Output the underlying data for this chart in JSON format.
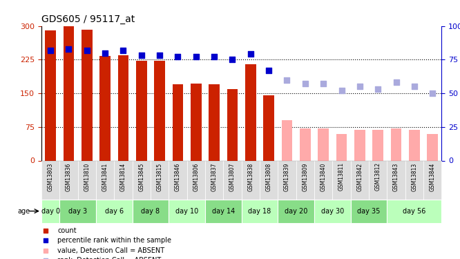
{
  "title": "GDS605 / 95117_at",
  "samples": [
    "GSM13803",
    "GSM13836",
    "GSM13810",
    "GSM13841",
    "GSM13814",
    "GSM13845",
    "GSM13815",
    "GSM13846",
    "GSM13806",
    "GSM13837",
    "GSM13807",
    "GSM13838",
    "GSM13808",
    "GSM13839",
    "GSM13809",
    "GSM13840",
    "GSM13811",
    "GSM13842",
    "GSM13812",
    "GSM13843",
    "GSM13813",
    "GSM13844"
  ],
  "count_values": [
    290,
    300,
    291,
    233,
    235,
    222,
    222,
    170,
    172,
    170,
    160,
    215,
    145,
    null,
    null,
    null,
    null,
    null,
    null,
    null,
    null,
    null
  ],
  "absent_values": [
    null,
    null,
    null,
    null,
    null,
    null,
    null,
    null,
    null,
    null,
    null,
    null,
    null,
    90,
    72,
    72,
    60,
    68,
    68,
    72,
    68,
    60
  ],
  "rank_present": [
    82,
    83,
    82,
    80,
    82,
    78,
    78,
    77,
    77,
    77,
    75,
    79,
    67,
    null,
    null,
    null,
    null,
    null,
    null,
    null,
    null,
    null
  ],
  "rank_absent": [
    null,
    null,
    null,
    null,
    null,
    null,
    null,
    null,
    null,
    null,
    null,
    null,
    null,
    60,
    57,
    57,
    52,
    55,
    53,
    58,
    55,
    50
  ],
  "day_groups": [
    {
      "label": "day 0",
      "start": 0,
      "end": 1,
      "green": false
    },
    {
      "label": "day 3",
      "start": 1,
      "end": 3,
      "green": true
    },
    {
      "label": "day 6",
      "start": 3,
      "end": 5,
      "green": false
    },
    {
      "label": "day 8",
      "start": 5,
      "end": 7,
      "green": true
    },
    {
      "label": "day 10",
      "start": 7,
      "end": 9,
      "green": false
    },
    {
      "label": "day 14",
      "start": 9,
      "end": 11,
      "green": true
    },
    {
      "label": "day 18",
      "start": 11,
      "end": 13,
      "green": false
    },
    {
      "label": "day 20",
      "start": 13,
      "end": 15,
      "green": true
    },
    {
      "label": "day 30",
      "start": 15,
      "end": 17,
      "green": false
    },
    {
      "label": "day 35",
      "start": 17,
      "end": 19,
      "green": true
    },
    {
      "label": "day 56",
      "start": 19,
      "end": 22,
      "green": false
    }
  ],
  "bar_color_present": "#cc2200",
  "bar_color_absent": "#ffaaaa",
  "dot_color_present": "#0000cc",
  "dot_color_absent": "#aaaadd",
  "ylim_left": [
    0,
    300
  ],
  "ylim_right": [
    0,
    100
  ],
  "yticks_left": [
    0,
    75,
    150,
    225,
    300
  ],
  "yticks_right": [
    0,
    25,
    50,
    75,
    100
  ],
  "background_color": "#ffffff",
  "grid_color": "#000000",
  "sample_bg_color": "#dddddd",
  "sample_bg_green": "#aaffaa",
  "legend_items": [
    {
      "color": "#cc2200",
      "label": "count"
    },
    {
      "color": "#0000cc",
      "label": "percentile rank within the sample"
    },
    {
      "color": "#ffaaaa",
      "label": "value, Detection Call = ABSENT"
    },
    {
      "color": "#aaaadd",
      "label": "rank, Detection Call = ABSENT"
    }
  ]
}
